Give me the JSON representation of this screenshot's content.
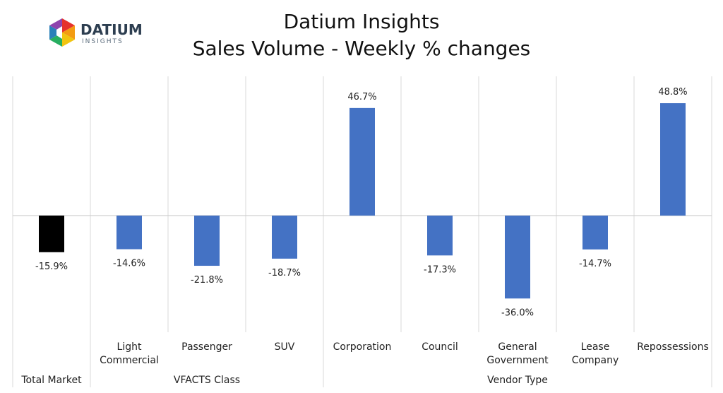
{
  "header": {
    "title_line1": "Datium Insights",
    "title_line2": "Sales Volume - Weekly % changes"
  },
  "logo": {
    "name": "DATIUM",
    "tagline": "INSIGHTS",
    "colors": [
      "#e5322d",
      "#f39c12",
      "#f1c40f",
      "#27ae60",
      "#2980b9",
      "#8e44ad"
    ]
  },
  "chart_data": {
    "type": "bar",
    "categories": [
      "Total Market",
      "Light Commercial",
      "Passenger",
      "SUV",
      "Corporation",
      "Council",
      "General Government",
      "Lease Company",
      "Repossessions"
    ],
    "category_lines": [
      [
        "Total Market"
      ],
      [
        "Light",
        "Commercial"
      ],
      [
        "Passenger"
      ],
      [
        "SUV"
      ],
      [
        "Corporation"
      ],
      [
        "Council"
      ],
      [
        "General",
        "Government"
      ],
      [
        "Lease",
        "Company"
      ],
      [
        "Repossessions"
      ]
    ],
    "values": [
      -15.9,
      -14.6,
      -21.8,
      -18.7,
      46.7,
      -17.3,
      -36.0,
      -14.7,
      48.8
    ],
    "data_labels": [
      "-15.9%",
      "-14.6%",
      "-21.8%",
      "-18.7%",
      "46.7%",
      "-17.3%",
      "-36.0%",
      "-14.7%",
      "48.8%"
    ],
    "bar_colors": [
      "#000000",
      "#4472c4",
      "#4472c4",
      "#4472c4",
      "#4472c4",
      "#4472c4",
      "#4472c4",
      "#4472c4",
      "#4472c4"
    ],
    "groups": [
      {
        "label": "",
        "start": 0,
        "end": 0
      },
      {
        "label": "VFACTS Class",
        "start": 1,
        "end": 3
      },
      {
        "label": "Vendor Type",
        "start": 4,
        "end": 8
      }
    ],
    "ylim": [
      -50,
      60
    ],
    "grid": "vertical",
    "legend": "none"
  }
}
